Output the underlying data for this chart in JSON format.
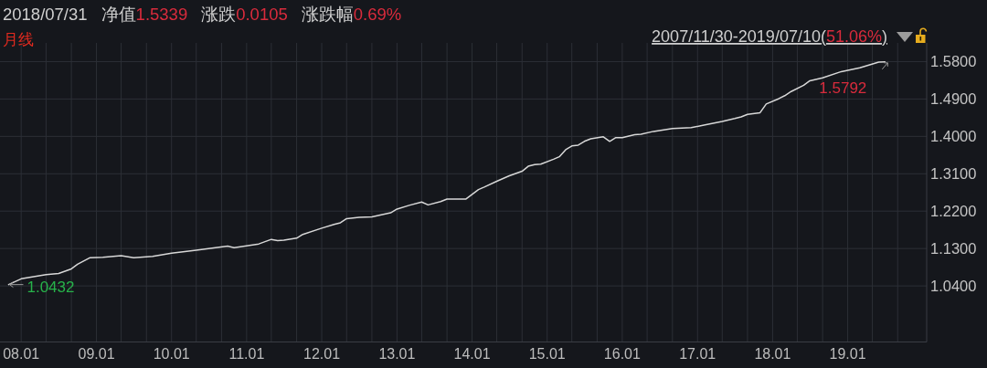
{
  "chart_data": {
    "type": "line",
    "title": "2018/07/31 净值1.5339 涨跌0.0105 涨跌幅0.69%",
    "subtitle": "月线",
    "annotations": [
      "2007/11/30-2019/07/10(51.06%)",
      {
        "text": "1.0432",
        "x": "2007-11",
        "y": 1.0432
      },
      {
        "text": "1.5792",
        "x": "2019-07",
        "y": 1.5792
      }
    ],
    "x": [
      "2007-11",
      "2008-01",
      "2008-03",
      "2008-05",
      "2008-07",
      "2008-09",
      "2008-10",
      "2008-12",
      "2009-02",
      "2009-05",
      "2009-07",
      "2009-10",
      "2010-01",
      "2010-05",
      "2010-10",
      "2010-11",
      "2011-03",
      "2011-05",
      "2011-06",
      "2011-07",
      "2011-09",
      "2011-10",
      "2012-01",
      "2012-03",
      "2012-04",
      "2012-05",
      "2012-07",
      "2012-09",
      "2012-12",
      "2013-01",
      "2013-03",
      "2013-05",
      "2013-06",
      "2013-08",
      "2013-09",
      "2013-12",
      "2014-02",
      "2014-03",
      "2014-05",
      "2014-07",
      "2014-09",
      "2014-10",
      "2014-11",
      "2014-12",
      "2015-02",
      "2015-03",
      "2015-04",
      "2015-05",
      "2015-06",
      "2015-07",
      "2015-08",
      "2015-10",
      "2015-11",
      "2015-12",
      "2016-01",
      "2016-03",
      "2016-04",
      "2016-06",
      "2016-09",
      "2016-12",
      "2017-02",
      "2017-05",
      "2017-07",
      "2017-08",
      "2017-09",
      "2017-11",
      "2017-12",
      "2018-02",
      "2018-03",
      "2018-04",
      "2018-06",
      "2018-07",
      "2018-09",
      "2018-12",
      "2019-03",
      "2019-06",
      "2019-07"
    ],
    "series": [
      {
        "color": "#d8d8d8",
        "values": [
          1.0432,
          1.057,
          1.062,
          1.067,
          1.07,
          1.081,
          1.092,
          1.108,
          1.109,
          1.113,
          1.108,
          1.111,
          1.119,
          1.126,
          1.136,
          1.132,
          1.141,
          1.152,
          1.149,
          1.15,
          1.155,
          1.164,
          1.179,
          1.188,
          1.192,
          1.202,
          1.205,
          1.206,
          1.216,
          1.225,
          1.234,
          1.242,
          1.235,
          1.243,
          1.249,
          1.249,
          1.272,
          1.278,
          1.292,
          1.305,
          1.316,
          1.328,
          1.332,
          1.333,
          1.345,
          1.351,
          1.368,
          1.377,
          1.379,
          1.388,
          1.394,
          1.399,
          1.388,
          1.397,
          1.397,
          1.404,
          1.405,
          1.412,
          1.419,
          1.421,
          1.427,
          1.436,
          1.443,
          1.447,
          1.453,
          1.457,
          1.478,
          1.491,
          1.498,
          1.508,
          1.523,
          1.5339,
          1.541,
          1.556,
          1.565,
          1.579,
          1.5792
        ]
      }
    ],
    "xlim": [
      "2007-09-20",
      "2020-01-20"
    ],
    "xticks": [
      {
        "value": "2008-01",
        "label": "08.01"
      },
      {
        "value": "2008-05",
        "label": null
      },
      {
        "value": "2008-09",
        "label": null
      },
      {
        "value": "2009-01",
        "label": "09.01"
      },
      {
        "value": "2009-05",
        "label": null
      },
      {
        "value": "2009-09",
        "label": null
      },
      {
        "value": "2010-01",
        "label": "10.01"
      },
      {
        "value": "2010-05",
        "label": null
      },
      {
        "value": "2010-09",
        "label": null
      },
      {
        "value": "2011-01",
        "label": "11.01"
      },
      {
        "value": "2011-05",
        "label": null
      },
      {
        "value": "2011-09",
        "label": null
      },
      {
        "value": "2012-01",
        "label": "12.01"
      },
      {
        "value": "2012-05",
        "label": null
      },
      {
        "value": "2012-09",
        "label": null
      },
      {
        "value": "2013-01",
        "label": "13.01"
      },
      {
        "value": "2013-05",
        "label": null
      },
      {
        "value": "2013-09",
        "label": null
      },
      {
        "value": "2014-01",
        "label": "14.01"
      },
      {
        "value": "2014-05",
        "label": null
      },
      {
        "value": "2014-09",
        "label": null
      },
      {
        "value": "2015-01",
        "label": "15.01"
      },
      {
        "value": "2015-05",
        "label": null
      },
      {
        "value": "2015-09",
        "label": null
      },
      {
        "value": "2016-01",
        "label": "16.01"
      },
      {
        "value": "2016-05",
        "label": null
      },
      {
        "value": "2016-09",
        "label": null
      },
      {
        "value": "2017-01",
        "label": "17.01"
      },
      {
        "value": "2017-05",
        "label": null
      },
      {
        "value": "2017-09",
        "label": null
      },
      {
        "value": "2018-01",
        "label": "18.01"
      },
      {
        "value": "2018-05",
        "label": null
      },
      {
        "value": "2018-09",
        "label": null
      },
      {
        "value": "2019-01",
        "label": "19.01"
      },
      {
        "value": "2019-05",
        "label": null
      },
      {
        "value": "2019-09",
        "label": null
      }
    ],
    "ylim": [
      0.905,
      1.625
    ],
    "yticks": [
      {
        "value": 1.04,
        "label": "1.0400"
      },
      {
        "value": 1.13,
        "label": "1.1300"
      },
      {
        "value": 1.22,
        "label": "1.2200"
      },
      {
        "value": 1.31,
        "label": "1.3100"
      },
      {
        "value": 1.4,
        "label": "1.4000"
      },
      {
        "value": 1.49,
        "label": "1.4900"
      },
      {
        "value": 1.58,
        "label": "1.5800"
      }
    ],
    "grid": true
  }
}
